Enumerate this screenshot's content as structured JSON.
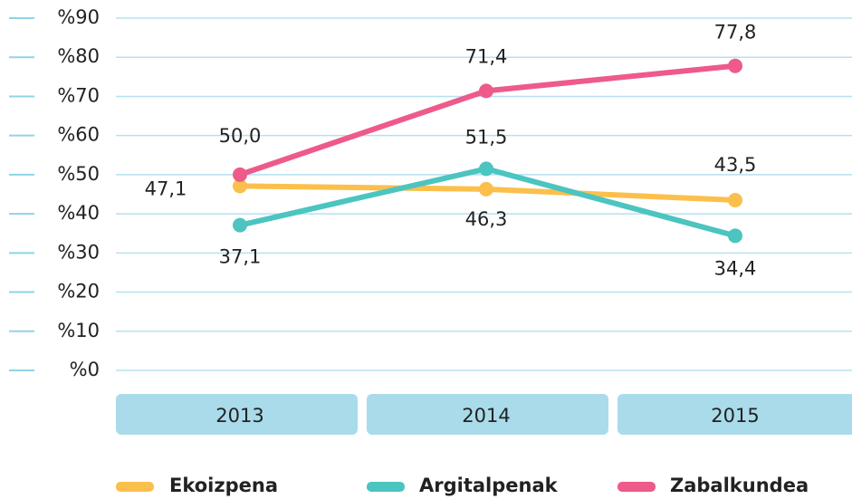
{
  "chart_data": {
    "type": "line",
    "categories": [
      "2013",
      "2014",
      "2015"
    ],
    "series": [
      {
        "name": "Ekoizpena",
        "color": "#fbc04b",
        "values": [
          47.1,
          46.3,
          43.5
        ],
        "value_labels": [
          "47,1",
          "46,3",
          "43,5"
        ]
      },
      {
        "name": "Argitalpenak",
        "color": "#4cc4c0",
        "values": [
          37.1,
          51.5,
          34.4
        ],
        "value_labels": [
          "37,1",
          "51,5",
          "34,4"
        ]
      },
      {
        "name": "Zabalkundea",
        "color": "#ee5a8a",
        "values": [
          50.0,
          71.4,
          77.8
        ],
        "value_labels": [
          "50,0",
          "71,4",
          "77,8"
        ]
      }
    ],
    "ylim": [
      0,
      90
    ],
    "yticks": [
      {
        "value": 0,
        "label": "%0"
      },
      {
        "value": 10,
        "label": "%10"
      },
      {
        "value": 20,
        "label": "%20"
      },
      {
        "value": 30,
        "label": "%30"
      },
      {
        "value": 40,
        "label": "%40"
      },
      {
        "value": 50,
        "label": "%50"
      },
      {
        "value": 60,
        "label": "%60"
      },
      {
        "value": 70,
        "label": "%70"
      },
      {
        "value": 80,
        "label": "%80"
      },
      {
        "value": 90,
        "label": "%90"
      }
    ],
    "grid": true
  }
}
